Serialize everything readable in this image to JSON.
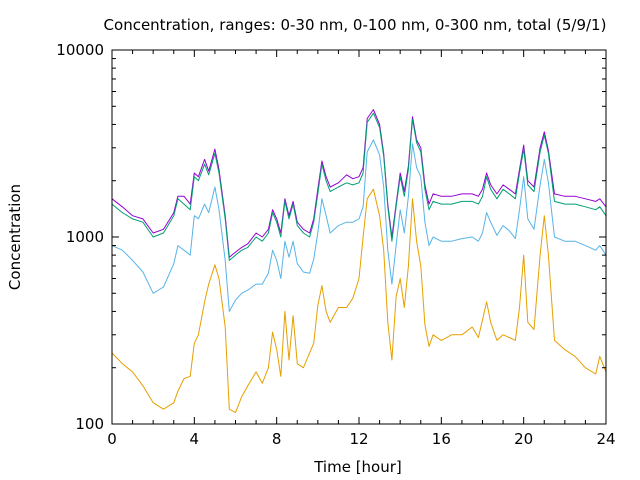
{
  "chart_data": {
    "type": "line",
    "title": "Concentration, ranges: 0-30 nm, 0-100 nm, 0-300 nm, total (5/9/1)",
    "xlabel": "Time [hour]",
    "ylabel": "Concentration",
    "xlim": [
      0,
      24
    ],
    "ylim": [
      100,
      10000
    ],
    "yscale": "log",
    "xticks": [
      0,
      4,
      8,
      12,
      16,
      20,
      24
    ],
    "yticks": [
      100,
      1000,
      10000
    ],
    "xtick_labels": [
      "0",
      "4",
      "8",
      "12",
      "16",
      "20",
      "24"
    ],
    "ytick_labels": [
      "100",
      "1000",
      "10000"
    ],
    "grid": false,
    "legend": "none",
    "x": [
      0,
      0.5,
      1,
      1.5,
      2,
      2.5,
      3,
      3.2,
      3.5,
      3.8,
      4,
      4.2,
      4.5,
      4.7,
      5,
      5.2,
      5.5,
      5.7,
      6,
      6.3,
      6.6,
      7,
      7.3,
      7.6,
      7.8,
      8,
      8.2,
      8.4,
      8.6,
      8.8,
      9,
      9.3,
      9.6,
      9.8,
      10,
      10.2,
      10.4,
      10.6,
      11,
      11.4,
      11.7,
      12,
      12.2,
      12.4,
      12.7,
      13,
      13.2,
      13.4,
      13.6,
      13.8,
      14,
      14.2,
      14.4,
      14.6,
      14.8,
      15,
      15.2,
      15.4,
      15.6,
      16,
      16.5,
      17,
      17.5,
      17.8,
      18,
      18.2,
      18.4,
      18.7,
      19,
      19.3,
      19.6,
      19.8,
      20,
      20.2,
      20.5,
      20.8,
      21,
      21.2,
      21.5,
      22,
      22.5,
      23,
      23.5,
      23.7,
      24
    ],
    "series": [
      {
        "color": "#9400d3",
        "values": [
          1600,
          1450,
          1300,
          1250,
          1050,
          1100,
          1350,
          1650,
          1650,
          1500,
          2200,
          2100,
          2600,
          2250,
          2950,
          2300,
          1300,
          780,
          830,
          880,
          920,
          1050,
          1000,
          1100,
          1400,
          1250,
          1050,
          1600,
          1300,
          1550,
          1200,
          1100,
          1050,
          1250,
          1800,
          2550,
          2100,
          1850,
          1950,
          2150,
          2050,
          2100,
          2350,
          4300,
          4800,
          4000,
          2800,
          1500,
          1000,
          1500,
          2200,
          1750,
          2400,
          4400,
          3300,
          3000,
          1900,
          1500,
          1700,
          1650,
          1650,
          1700,
          1700,
          1650,
          1800,
          2200,
          1900,
          1700,
          1900,
          1800,
          1700,
          2300,
          3100,
          2000,
          1850,
          3000,
          3650,
          2900,
          1700,
          1650,
          1650,
          1600,
          1550,
          1600,
          1450
        ]
      },
      {
        "color": "#009e73",
        "values": [
          1500,
          1350,
          1250,
          1200,
          1000,
          1050,
          1300,
          1600,
          1500,
          1400,
          2100,
          2000,
          2450,
          2150,
          2800,
          2200,
          1250,
          750,
          800,
          850,
          880,
          1000,
          950,
          1050,
          1350,
          1200,
          1000,
          1550,
          1250,
          1500,
          1150,
          1050,
          1000,
          1200,
          1700,
          2450,
          2000,
          1750,
          1850,
          1950,
          1900,
          1950,
          2200,
          4100,
          4600,
          3850,
          2700,
          1450,
          950,
          1450,
          2100,
          1650,
          2300,
          4250,
          3200,
          2850,
          1800,
          1400,
          1550,
          1500,
          1500,
          1550,
          1550,
          1500,
          1650,
          2100,
          1800,
          1600,
          1800,
          1700,
          1600,
          2200,
          2950,
          1900,
          1750,
          2850,
          3500,
          2800,
          1550,
          1500,
          1500,
          1450,
          1400,
          1450,
          1300
        ]
      },
      {
        "color": "#56b4e9",
        "values": [
          900,
          850,
          750,
          650,
          500,
          540,
          720,
          900,
          850,
          800,
          1300,
          1250,
          1500,
          1350,
          1850,
          1400,
          750,
          400,
          460,
          500,
          520,
          560,
          560,
          640,
          850,
          750,
          600,
          950,
          780,
          950,
          720,
          650,
          640,
          760,
          1050,
          1600,
          1300,
          1050,
          1150,
          1200,
          1200,
          1250,
          1450,
          2850,
          3300,
          2750,
          1850,
          850,
          560,
          900,
          1400,
          1050,
          1650,
          3150,
          2350,
          2100,
          1200,
          900,
          1000,
          950,
          950,
          980,
          1000,
          950,
          1050,
          1350,
          1200,
          1020,
          1150,
          1080,
          980,
          1400,
          2100,
          1250,
          1100,
          1900,
          2600,
          1950,
          1000,
          950,
          950,
          900,
          850,
          900,
          800
        ]
      },
      {
        "color": "#e69f00",
        "values": [
          240,
          210,
          190,
          160,
          130,
          120,
          130,
          150,
          175,
          180,
          270,
          300,
          450,
          560,
          710,
          600,
          330,
          120,
          115,
          140,
          160,
          190,
          165,
          200,
          310,
          250,
          180,
          400,
          220,
          380,
          210,
          200,
          240,
          270,
          430,
          550,
          400,
          350,
          420,
          420,
          470,
          600,
          1000,
          1600,
          1800,
          1300,
          850,
          350,
          220,
          480,
          600,
          420,
          700,
          1600,
          950,
          700,
          340,
          260,
          300,
          280,
          300,
          300,
          330,
          290,
          360,
          450,
          350,
          280,
          300,
          290,
          280,
          420,
          800,
          350,
          320,
          800,
          1300,
          800,
          280,
          250,
          230,
          200,
          185,
          230,
          190
        ]
      }
    ]
  }
}
